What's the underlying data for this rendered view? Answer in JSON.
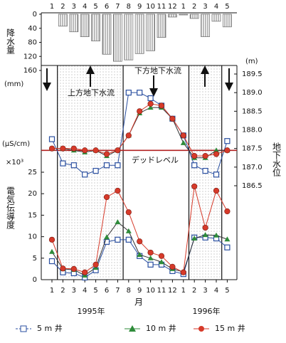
{
  "chart_data": {
    "type": "combo",
    "categories": [
      "1",
      "2",
      "3",
      "4",
      "5",
      "6",
      "7",
      "8",
      "9",
      "10",
      "11",
      "12",
      "1",
      "2",
      "3",
      "4",
      "5"
    ],
    "xlabel": "月",
    "years": [
      "1995年",
      "1996年"
    ],
    "precipitation": {
      "label": "降水量",
      "unit": "(mm)",
      "color": "#777777",
      "values": [
        0,
        34,
        50,
        64,
        76,
        114,
        134,
        130,
        112,
        104,
        66,
        8,
        2,
        12,
        64,
        20,
        36
      ],
      "ylim": [
        0,
        160
      ],
      "yticks": [
        0,
        40,
        80,
        120,
        160
      ]
    },
    "conductivity_axis": {
      "label": "電気伝導度",
      "unit": "(μS/cm)",
      "multiplier": "×10³",
      "ylim": [
        0,
        25
      ],
      "yticks": [
        0,
        5,
        10,
        15,
        20,
        25
      ]
    },
    "level_axis": {
      "label": "地下水位",
      "unit": "(m)",
      "ylim": [
        186.5,
        189.5
      ],
      "yticks": [
        186.5,
        {
          "value": 187,
          "label": "187.0"
        },
        187.5,
        {
          "value": 188,
          "label": "188.0"
        },
        188.5,
        {
          "value": 189,
          "label": "189.0"
        },
        189.5
      ]
    },
    "series": [
      {
        "name": "5 m 井",
        "color": "#2a4fa0",
        "marker": "square",
        "level": [
          187.75,
          187.1,
          187.05,
          186.8,
          186.9,
          187.05,
          187.05,
          189.0,
          189.0,
          188.85,
          188.65,
          188.3,
          187.85,
          187.05,
          186.9,
          186.8,
          187.7
        ],
        "conductivity": [
          4.3,
          1.7,
          1.5,
          0.5,
          2.2,
          8.8,
          9.3,
          9.3,
          5.5,
          3.5,
          3.5,
          2.0,
          1.3,
          9.8,
          9.8,
          9.6,
          7.5
        ]
      },
      {
        "name": "10 m 井",
        "color": "#2e8b3a",
        "marker": "triangle",
        "level": [
          187.5,
          187.5,
          187.45,
          187.4,
          187.45,
          187.3,
          187.45,
          187.85,
          188.45,
          188.6,
          188.6,
          188.3,
          187.65,
          187.25,
          187.25,
          187.45,
          187.45
        ],
        "conductivity": [
          6.5,
          2.5,
          2.3,
          1.0,
          2.8,
          9.9,
          13.4,
          11.3,
          5.8,
          5.0,
          4.1,
          2.5,
          1.8,
          9.6,
          10.4,
          10.3,
          9.4
        ]
      },
      {
        "name": "15 m 井",
        "color": "#d63a2a",
        "marker": "circle",
        "level": [
          187.5,
          187.5,
          187.5,
          187.45,
          187.45,
          187.35,
          187.45,
          187.85,
          188.5,
          188.7,
          188.65,
          188.3,
          187.85,
          187.3,
          187.3,
          187.35,
          187.45
        ],
        "conductivity": [
          9.3,
          2.6,
          2.5,
          1.7,
          3.5,
          19.2,
          20.7,
          15.7,
          8.9,
          6.3,
          5.5,
          3.0,
          1.7,
          21.7,
          12.1,
          20.7,
          15.9
        ]
      }
    ],
    "annotations": [
      "上方地下水流",
      "下方地下水流"
    ],
    "dead_level": {
      "label": "デッドレベル",
      "value": 187.45,
      "color": "#b22222"
    }
  }
}
